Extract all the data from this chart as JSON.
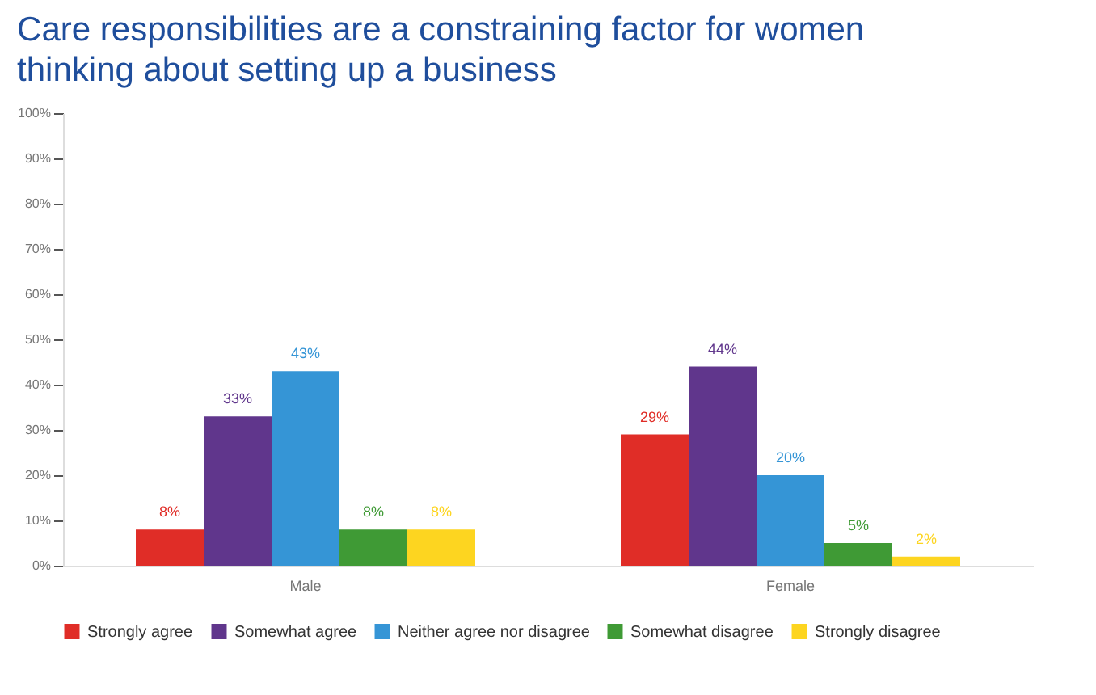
{
  "chart_data": {
    "type": "bar",
    "title": "Care responsibilities are a constraining factor for women thinking about setting up a business",
    "categories": [
      "Male",
      "Female"
    ],
    "series": [
      {
        "name": "Strongly agree",
        "color": "#e02d27",
        "values": [
          8,
          29
        ],
        "value_labels": [
          "8%",
          "29%"
        ]
      },
      {
        "name": "Somewhat agree",
        "color": "#60368c",
        "values": [
          33,
          44
        ],
        "value_labels": [
          "33%",
          "44%"
        ]
      },
      {
        "name": "Neither agree nor disagree",
        "color": "#3595d6",
        "values": [
          43,
          20
        ],
        "value_labels": [
          "43%",
          "20%"
        ]
      },
      {
        "name": "Somewhat disagree",
        "color": "#3f9a35",
        "values": [
          8,
          5
        ],
        "value_labels": [
          "8%",
          "5%"
        ]
      },
      {
        "name": "Strongly disagree",
        "color": "#fdd520",
        "values": [
          8,
          2
        ],
        "value_labels": [
          "8%",
          "2%"
        ]
      }
    ],
    "ylim": [
      0,
      100
    ],
    "yticks": [
      {
        "value": 0,
        "label": "0%"
      },
      {
        "value": 10,
        "label": "10%"
      },
      {
        "value": 20,
        "label": "20%"
      },
      {
        "value": 30,
        "label": "30%"
      },
      {
        "value": 40,
        "label": "40%"
      },
      {
        "value": 50,
        "label": "50%"
      },
      {
        "value": 60,
        "label": "60%"
      },
      {
        "value": 70,
        "label": "70%"
      },
      {
        "value": 80,
        "label": "80%"
      },
      {
        "value": 90,
        "label": "90%"
      },
      {
        "value": 100,
        "label": "100%"
      }
    ],
    "grid": false,
    "legend": "bottom"
  }
}
